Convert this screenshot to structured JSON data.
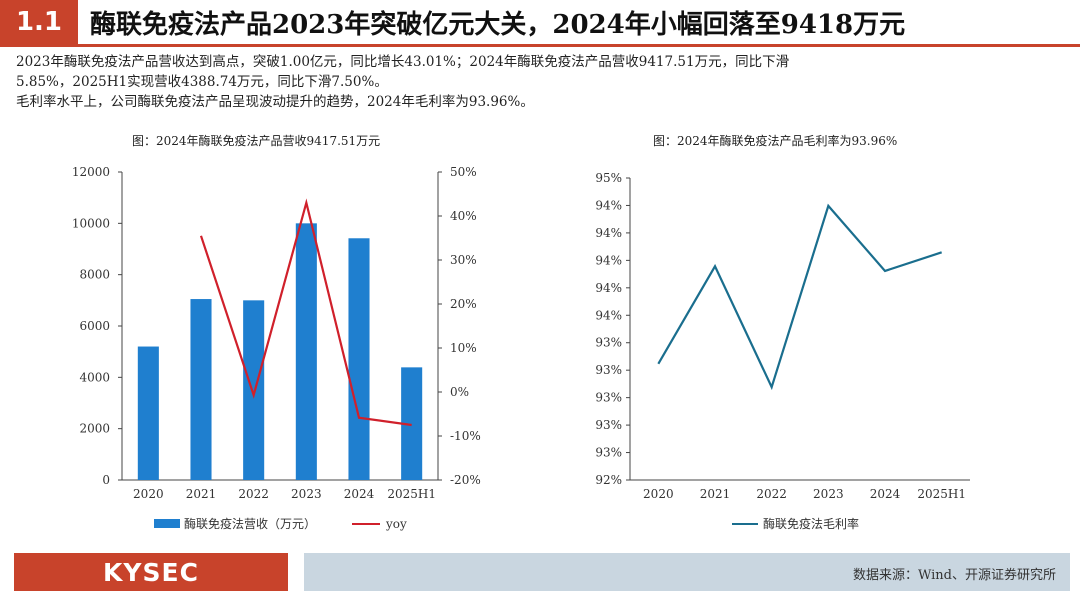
{
  "header": {
    "section_number": "1.1",
    "title": "酶联免疫法产品2023年突破亿元大关，2024年小幅回落至9418万元"
  },
  "description": {
    "line1": "2023年酶联免疫法产品营收达到高点，突破1.00亿元，同比增长43.01%；2024年酶联免疫法产品营收9417.51万元，同比下滑",
    "line2": "5.85%，2025H1实现营收4388.74万元，同比下滑7.50%。",
    "line3": "毛利率水平上，公司酶联免疫法产品呈现波动提升的趋势，2024年毛利率为93.96%。"
  },
  "colors": {
    "accent": "#c8432b",
    "bar": "#1f7fcf",
    "yoy_line": "#d0202b",
    "margin_line": "#1a6e8e",
    "footer_source_bg": "#c9d6e0"
  },
  "chart_data": [
    {
      "type": "bar",
      "title": "图：2024年酶联免疫法产品营收9417.51万元",
      "categories": [
        "2020",
        "2021",
        "2022",
        "2023",
        "2024",
        "2025H1"
      ],
      "series": [
        {
          "name": "酶联免疫法营收（万元）",
          "type": "bar",
          "axis": "left",
          "values": [
            5200,
            7050,
            7000,
            10000,
            9418,
            4389
          ]
        },
        {
          "name": "yoy",
          "type": "line",
          "axis": "right",
          "values": [
            null,
            35.5,
            -0.7,
            43.01,
            -5.85,
            -7.5
          ]
        }
      ],
      "ylim_left": [
        0,
        12000
      ],
      "yticks_left": [
        "0",
        "2000",
        "4000",
        "6000",
        "8000",
        "10000",
        "12000"
      ],
      "ylim_right": [
        -20,
        50
      ],
      "yticks_right": [
        "-20%",
        "-10%",
        "0%",
        "10%",
        "20%",
        "30%",
        "40%",
        "50%"
      ],
      "legend_position": "bottom",
      "grid": false
    },
    {
      "type": "line",
      "title": "图：2024年酶联免疫法产品毛利率为93.96%",
      "categories": [
        "2020",
        "2021",
        "2022",
        "2023",
        "2024",
        "2025H1"
      ],
      "series": [
        {
          "name": "酶联免疫法毛利率",
          "values": [
            93.0,
            94.05,
            92.75,
            94.7,
            94.0,
            94.2
          ]
        }
      ],
      "ylim": [
        91.75,
        95.0
      ],
      "yticks": [
        "92%",
        "93%",
        "93%",
        "93%",
        "93%",
        "93%",
        "94%",
        "94%",
        "94%",
        "94%",
        "94%",
        "95%"
      ],
      "legend_position": "bottom",
      "grid": false
    }
  ],
  "footer": {
    "logo": "KYSEC",
    "source": "数据来源：Wind、开源证券研究所"
  }
}
